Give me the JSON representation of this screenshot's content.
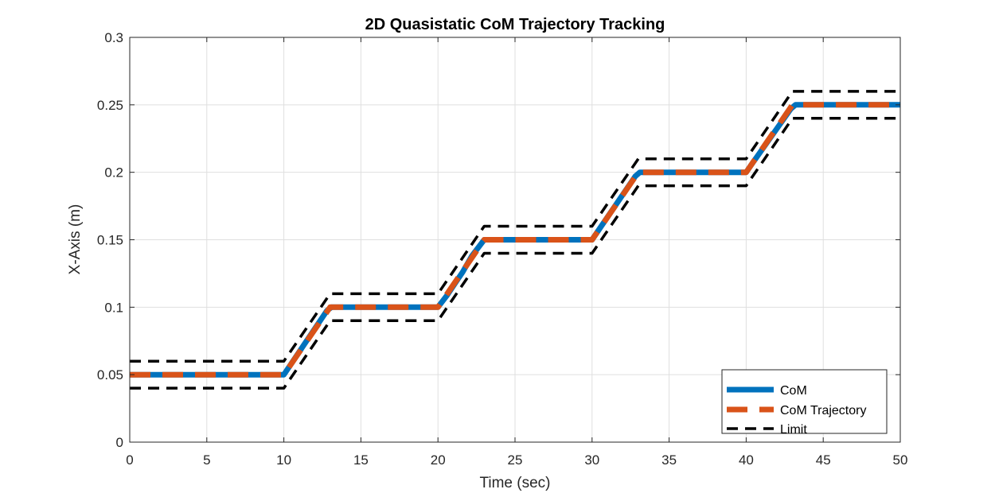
{
  "chart_data": {
    "type": "line",
    "title": "2D Quasistatic CoM Trajectory Tracking",
    "xlabel": "Time (sec)",
    "ylabel": "X-Axis (m)",
    "xlim": [
      0,
      50
    ],
    "ylim": [
      0,
      0.3
    ],
    "x_ticks": [
      0,
      5,
      10,
      15,
      20,
      25,
      30,
      35,
      40,
      45,
      50
    ],
    "x_tick_labels": [
      "0",
      "5",
      "10",
      "15",
      "20",
      "25",
      "30",
      "35",
      "40",
      "45",
      "50"
    ],
    "y_ticks": [
      0,
      0.05,
      0.1,
      0.15,
      0.2,
      0.25,
      0.3
    ],
    "y_tick_labels": [
      "0",
      "0.05",
      "0.1",
      "0.15",
      "0.2",
      "0.25",
      "0.3"
    ],
    "grid": true,
    "legend_position": "bottom-right",
    "series": [
      {
        "name": "CoM",
        "color": "#0072BD",
        "style": "solid",
        "x": [
          0,
          10,
          12.8,
          13.1,
          20,
          20.6,
          21.3,
          21.6,
          22.2,
          23,
          30,
          32.8,
          33.1,
          40,
          40.3,
          42.9,
          43.2,
          50
        ],
        "y": [
          0.05,
          0.05,
          0.0975,
          0.1,
          0.1,
          0.109,
          0.121,
          0.126,
          0.138,
          0.15,
          0.15,
          0.197,
          0.2,
          0.2,
          0.205,
          0.247,
          0.25,
          0.25
        ]
      },
      {
        "name": "CoM Trajectory",
        "color": "#D95319",
        "style": "dashed",
        "x": [
          0,
          10,
          13,
          20,
          23,
          30,
          33,
          40,
          43,
          50
        ],
        "y": [
          0.05,
          0.05,
          0.1,
          0.1,
          0.15,
          0.15,
          0.2,
          0.2,
          0.25,
          0.25
        ]
      },
      {
        "name": "Limit",
        "color": "#000000",
        "style": "dashed",
        "x": [
          0,
          10,
          13,
          20,
          23,
          30,
          33,
          40,
          43,
          50
        ],
        "y": [
          0.06,
          0.06,
          0.11,
          0.11,
          0.16,
          0.16,
          0.21,
          0.21,
          0.26,
          0.26
        ]
      },
      {
        "name": "",
        "color": "#000000",
        "style": "dashed",
        "x": [
          0,
          10,
          13,
          20,
          23,
          30,
          33,
          40,
          43,
          50
        ],
        "y": [
          0.04,
          0.04,
          0.09,
          0.09,
          0.14,
          0.14,
          0.19,
          0.19,
          0.24,
          0.24
        ]
      }
    ]
  }
}
